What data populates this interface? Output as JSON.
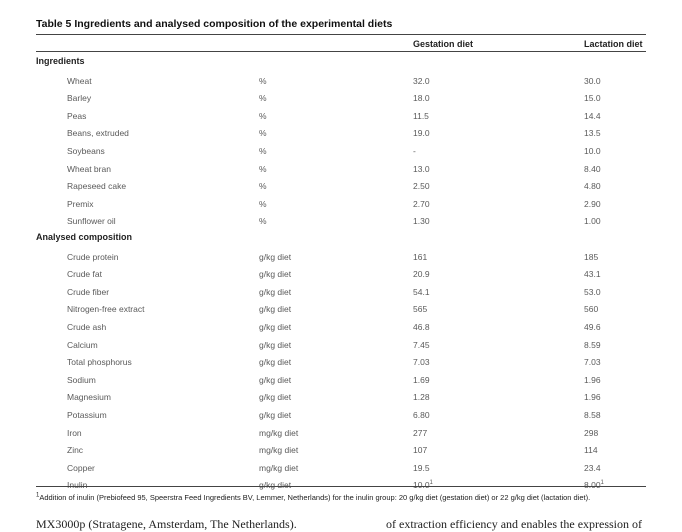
{
  "table": {
    "title": "Table 5 Ingredients and analysed composition of the experimental diets",
    "columns": {
      "gestation": "Gestation diet",
      "lactation": "Lactation diet"
    },
    "sections": [
      {
        "label": "Ingredients",
        "rows": [
          {
            "name": "Wheat",
            "unit": "%",
            "gestation": "32.0",
            "lactation": "30.0"
          },
          {
            "name": "Barley",
            "unit": "%",
            "gestation": "18.0",
            "lactation": "15.0"
          },
          {
            "name": "Peas",
            "unit": "%",
            "gestation": "11.5",
            "lactation": "14.4"
          },
          {
            "name": "Beans, extruded",
            "unit": "%",
            "gestation": "19.0",
            "lactation": "13.5"
          },
          {
            "name": "Soybeans",
            "unit": "%",
            "gestation": "-",
            "lactation": "10.0"
          },
          {
            "name": "Wheat bran",
            "unit": "%",
            "gestation": "13.0",
            "lactation": "8.40"
          },
          {
            "name": "Rapeseed cake",
            "unit": "%",
            "gestation": "2.50",
            "lactation": "4.80"
          },
          {
            "name": "Premix",
            "unit": "%",
            "gestation": "2.70",
            "lactation": "2.90"
          },
          {
            "name": "Sunflower oil",
            "unit": "%",
            "gestation": "1.30",
            "lactation": "1.00"
          }
        ]
      },
      {
        "label": "Analysed composition",
        "rows": [
          {
            "name": "Crude protein",
            "unit": "g/kg diet",
            "gestation": "161",
            "lactation": "185"
          },
          {
            "name": "Crude fat",
            "unit": "g/kg diet",
            "gestation": "20.9",
            "lactation": "43.1"
          },
          {
            "name": "Crude fiber",
            "unit": "g/kg diet",
            "gestation": "54.1",
            "lactation": "53.0"
          },
          {
            "name": "Nitrogen-free extract",
            "unit": "g/kg diet",
            "gestation": "565",
            "lactation": "560"
          },
          {
            "name": "Crude ash",
            "unit": "g/kg diet",
            "gestation": "46.8",
            "lactation": "49.6"
          },
          {
            "name": "Calcium",
            "unit": "g/kg diet",
            "gestation": "7.45",
            "lactation": "8.59"
          },
          {
            "name": "Total phosphorus",
            "unit": "g/kg diet",
            "gestation": "7.03",
            "lactation": "7.03"
          },
          {
            "name": "Sodium",
            "unit": "g/kg diet",
            "gestation": "1.69",
            "lactation": "1.96"
          },
          {
            "name": "Magnesium",
            "unit": "g/kg diet",
            "gestation": "1.28",
            "lactation": "1.96"
          },
          {
            "name": "Potassium",
            "unit": "g/kg diet",
            "gestation": "6.80",
            "lactation": "8.58"
          },
          {
            "name": "Iron",
            "unit": "mg/kg diet",
            "gestation": "277",
            "lactation": "298"
          },
          {
            "name": "Zinc",
            "unit": "mg/kg diet",
            "gestation": "107",
            "lactation": "114"
          },
          {
            "name": "Copper",
            "unit": "mg/kg diet",
            "gestation": "19.5",
            "lactation": "23.4"
          },
          {
            "name": "Inulin",
            "unit": "g/kg diet",
            "gestation": "10.0",
            "gestation_sup": "1",
            "lactation": "8.00",
            "lactation_sup": "1"
          }
        ]
      }
    ],
    "footnote": {
      "marker": "1",
      "text": "Addition of inulin (Prebiofeed 95, Speerstra Feed Ingredients BV, Lemmer, Netherlands) for the inulin group: 20 g/kg diet (gestation diet) or 22 g/kg diet (lactation diet)."
    }
  },
  "body_text": {
    "left": "MX3000p (Stratagene, Amsterdam, The Netherlands).",
    "right": "of extraction efficiency and enables the expression of"
  }
}
